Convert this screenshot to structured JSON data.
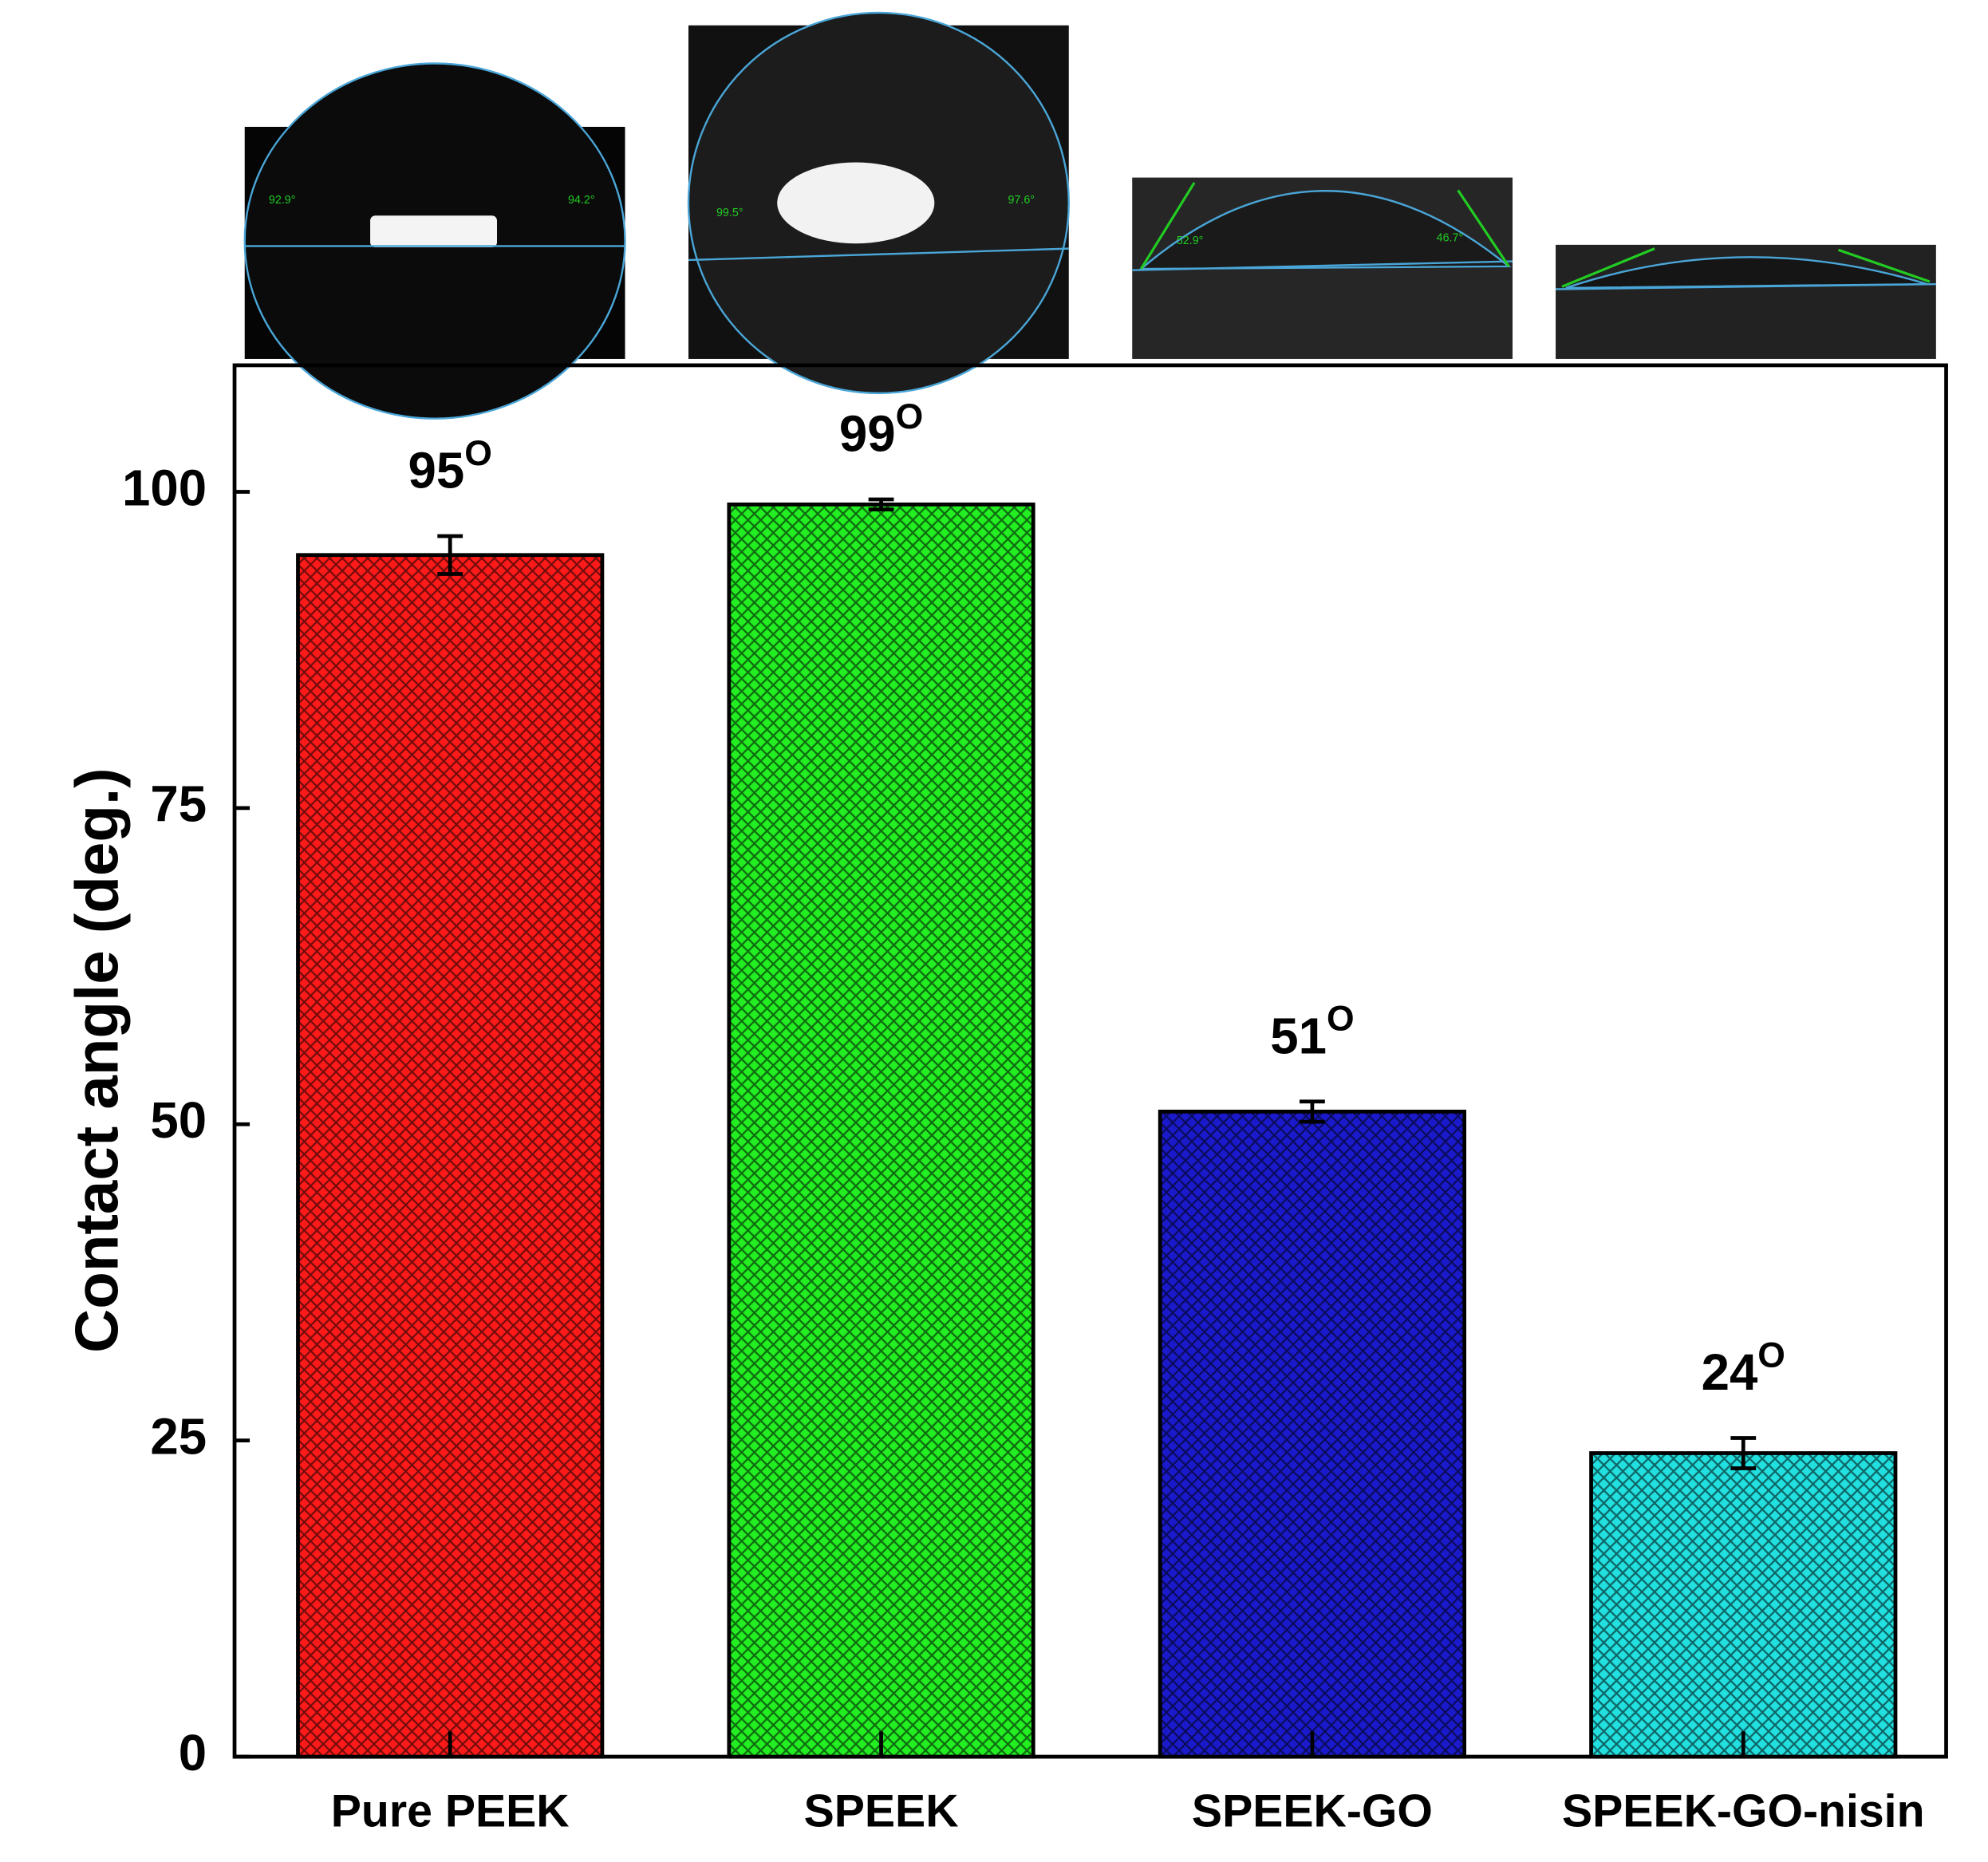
{
  "chart_data": {
    "type": "bar",
    "categories": [
      "Pure PEEK",
      "SPEEK",
      "SPEEK-GO",
      "SPEEK-GO-nisin"
    ],
    "series": [
      {
        "values": [
          95,
          99,
          51,
          24
        ],
        "errors": [
          1.5,
          0.4,
          0.8,
          1.2
        ],
        "colors": [
          "#ff1a1a",
          "#22ee22",
          "#1a1acc",
          "#22e0e0"
        ]
      }
    ],
    "value_labels": [
      "95",
      "99",
      "51",
      "24"
    ],
    "value_label_superscript": "O",
    "y_label": "Contact angle (deg.)",
    "ylim": [
      0,
      110
    ],
    "yticks": [
      0,
      25,
      50,
      75,
      100
    ],
    "image_annotations": [
      "92.9°",
      "94.2°",
      "99.5°",
      "97.6°",
      "52.9°",
      "46.7°"
    ]
  }
}
